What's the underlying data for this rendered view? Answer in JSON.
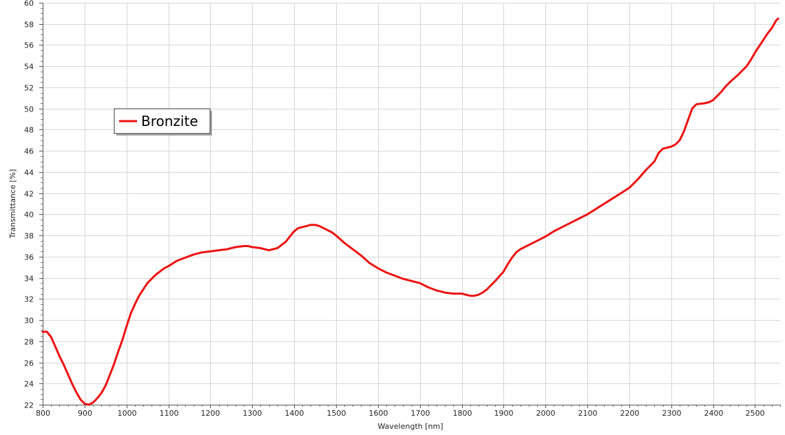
{
  "chart_data": {
    "type": "line",
    "xlabel": "Wavelength [nm]",
    "ylabel": "Transmittance [%]",
    "xlim": [
      800,
      2560
    ],
    "ylim": [
      22,
      60
    ],
    "x_ticks": [
      800,
      900,
      1000,
      1100,
      1200,
      1300,
      1400,
      1500,
      1600,
      1700,
      1800,
      1900,
      2000,
      2100,
      2200,
      2300,
      2400,
      2500
    ],
    "y_ticks": [
      22,
      24,
      26,
      28,
      30,
      32,
      34,
      36,
      38,
      40,
      42,
      44,
      46,
      48,
      50,
      52,
      54,
      56,
      58,
      60
    ],
    "grid": true,
    "legend_position": "upper-left",
    "series": [
      {
        "name": "Bronzite",
        "color": "#ee1111",
        "x": [
          800,
          810,
          820,
          830,
          840,
          850,
          860,
          870,
          880,
          890,
          900,
          910,
          920,
          930,
          940,
          950,
          960,
          970,
          980,
          990,
          1000,
          1010,
          1020,
          1030,
          1040,
          1050,
          1060,
          1070,
          1080,
          1090,
          1100,
          1120,
          1140,
          1160,
          1180,
          1200,
          1220,
          1240,
          1260,
          1280,
          1290,
          1300,
          1320,
          1340,
          1360,
          1380,
          1390,
          1400,
          1410,
          1420,
          1430,
          1440,
          1450,
          1460,
          1470,
          1480,
          1490,
          1500,
          1520,
          1540,
          1560,
          1580,
          1600,
          1620,
          1640,
          1660,
          1680,
          1700,
          1720,
          1740,
          1760,
          1780,
          1800,
          1820,
          1830,
          1840,
          1850,
          1860,
          1870,
          1880,
          1900,
          1910,
          1920,
          1930,
          1940,
          1950,
          1960,
          1980,
          2000,
          2020,
          2040,
          2060,
          2080,
          2100,
          2120,
          2140,
          2160,
          2180,
          2200,
          2220,
          2240,
          2260,
          2270,
          2280,
          2300,
          2310,
          2320,
          2330,
          2340,
          2350,
          2360,
          2380,
          2390,
          2400,
          2410,
          2420,
          2430,
          2440,
          2460,
          2480,
          2490,
          2500,
          2510,
          2520,
          2530,
          2540,
          2550,
          2555
        ],
        "y": [
          28.9,
          28.9,
          28.4,
          27.5,
          26.6,
          25.8,
          24.9,
          24.0,
          23.2,
          22.5,
          22.1,
          22.0,
          22.2,
          22.6,
          23.1,
          23.8,
          24.8,
          25.8,
          27.0,
          28.1,
          29.4,
          30.6,
          31.5,
          32.3,
          32.9,
          33.5,
          33.9,
          34.3,
          34.6,
          34.9,
          35.1,
          35.6,
          35.9,
          36.2,
          36.4,
          36.5,
          36.6,
          36.7,
          36.9,
          37.0,
          37.0,
          36.9,
          36.8,
          36.6,
          36.8,
          37.4,
          37.9,
          38.4,
          38.7,
          38.8,
          38.9,
          39.0,
          39.0,
          38.9,
          38.7,
          38.5,
          38.3,
          38.0,
          37.3,
          36.7,
          36.1,
          35.4,
          34.9,
          34.5,
          34.2,
          33.9,
          33.7,
          33.5,
          33.1,
          32.8,
          32.6,
          32.5,
          32.5,
          32.3,
          32.3,
          32.4,
          32.6,
          32.9,
          33.3,
          33.7,
          34.6,
          35.3,
          35.9,
          36.4,
          36.7,
          36.9,
          37.1,
          37.5,
          37.9,
          38.4,
          38.8,
          39.2,
          39.6,
          40.0,
          40.5,
          41.0,
          41.5,
          42.0,
          42.5,
          43.3,
          44.2,
          45.0,
          45.8,
          46.2,
          46.4,
          46.6,
          47.0,
          47.8,
          48.9,
          50.0,
          50.4,
          50.5,
          50.6,
          50.8,
          51.2,
          51.6,
          52.1,
          52.5,
          53.2,
          54.0,
          54.6,
          55.3,
          55.9,
          56.5,
          57.1,
          57.6,
          58.3,
          58.5
        ]
      }
    ]
  }
}
